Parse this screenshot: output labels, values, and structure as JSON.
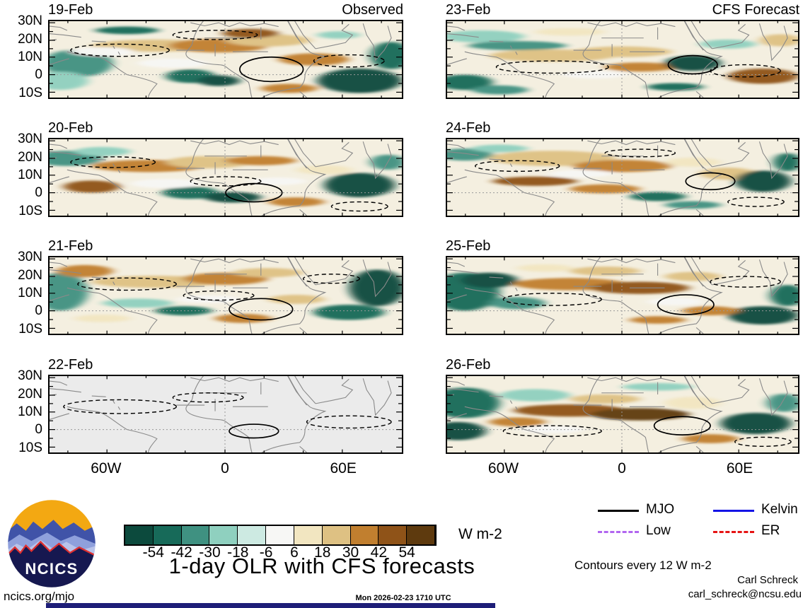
{
  "figure": {
    "title": "1-day OLR with CFS forecasts",
    "timestamp": "Mon 2026-02-23 1710 UTC",
    "site": "ncics.org/mjo",
    "credit_name": "Carl Schreck",
    "credit_email": "carl_schreck@ncsu.edu",
    "contour_note": "Contours every 12 W m-2"
  },
  "axes": {
    "lat_labels": [
      "30N",
      "20N",
      "10N",
      "0",
      "10S"
    ],
    "lon_labels": [
      "60W",
      "0",
      "60E"
    ]
  },
  "colorbar": {
    "unit": "W m-2",
    "tick_values": [
      "-54",
      "-42",
      "-30",
      "-18",
      "-6",
      "6",
      "18",
      "30",
      "42",
      "54"
    ],
    "colors": [
      "#0c4a3d",
      "#176a59",
      "#3f9181",
      "#8fd0bf",
      "#cdeae2",
      "#f7f7f5",
      "#f2e6c1",
      "#dec183",
      "#c17f2f",
      "#8f5318",
      "#5e3a0e"
    ]
  },
  "legend": {
    "items": [
      {
        "label": "MJO",
        "color": "#000000",
        "dash": "solid"
      },
      {
        "label": "Kelvin",
        "color": "#1414e6",
        "dash": "solid"
      },
      {
        "label": "Low",
        "color": "#b266f0",
        "dash": "dashed"
      },
      {
        "label": "ER",
        "color": "#e61414",
        "dash": "dashed"
      }
    ]
  },
  "logo": {
    "text": "NCICS"
  },
  "panels": [
    {
      "date": "19-Feb",
      "corner": "Observed",
      "column": 0,
      "row": 0,
      "style": "filled",
      "blobs": [
        [
          8,
          55,
          10,
          18,
          2
        ],
        [
          3,
          78,
          8,
          12,
          3
        ],
        [
          22,
          12,
          9,
          5,
          1
        ],
        [
          30,
          32,
          18,
          8,
          7
        ],
        [
          48,
          32,
          14,
          9,
          8
        ],
        [
          62,
          25,
          12,
          8,
          7
        ],
        [
          40,
          72,
          7,
          9,
          1
        ],
        [
          48,
          78,
          6,
          7,
          0
        ],
        [
          57,
          16,
          8,
          6,
          9
        ],
        [
          75,
          50,
          10,
          8,
          8
        ],
        [
          88,
          78,
          12,
          16,
          0
        ],
        [
          97,
          45,
          6,
          18,
          1
        ],
        [
          82,
          18,
          6,
          5,
          3
        ],
        [
          68,
          88,
          8,
          6,
          8
        ],
        [
          35,
          55,
          10,
          6,
          5
        ],
        [
          15,
          40,
          9,
          6,
          5
        ]
      ],
      "mjo": [
        63,
        63,
        9,
        16
      ],
      "dashed": [
        [
          20,
          38,
          14,
          8
        ],
        [
          47,
          18,
          12,
          6
        ],
        [
          85,
          52,
          10,
          8
        ]
      ]
    },
    {
      "date": "20-Feb",
      "corner": "",
      "column": 0,
      "row": 1,
      "style": "filled",
      "blobs": [
        [
          5,
          25,
          10,
          10,
          2
        ],
        [
          15,
          16,
          8,
          6,
          3
        ],
        [
          28,
          35,
          16,
          8,
          8
        ],
        [
          12,
          62,
          8,
          8,
          9
        ],
        [
          45,
          30,
          12,
          8,
          7
        ],
        [
          60,
          28,
          10,
          6,
          8
        ],
        [
          40,
          70,
          8,
          8,
          1
        ],
        [
          52,
          76,
          8,
          7,
          0
        ],
        [
          88,
          60,
          10,
          16,
          0
        ],
        [
          96,
          30,
          5,
          10,
          2
        ],
        [
          70,
          82,
          8,
          6,
          8
        ],
        [
          78,
          40,
          8,
          6,
          6
        ],
        [
          33,
          58,
          10,
          6,
          5
        ],
        [
          65,
          55,
          8,
          5,
          5
        ]
      ],
      "mjo": [
        58,
        70,
        8,
        12
      ],
      "dashed": [
        [
          18,
          30,
          12,
          7
        ],
        [
          50,
          55,
          10,
          6
        ],
        [
          88,
          88,
          8,
          6
        ]
      ]
    },
    {
      "date": "21-Feb",
      "corner": "",
      "column": 0,
      "row": 2,
      "style": "filled",
      "blobs": [
        [
          3,
          45,
          8,
          25,
          2
        ],
        [
          10,
          18,
          8,
          8,
          8
        ],
        [
          30,
          32,
          18,
          8,
          7
        ],
        [
          50,
          28,
          12,
          8,
          8
        ],
        [
          25,
          60,
          10,
          6,
          3
        ],
        [
          38,
          70,
          8,
          6,
          1
        ],
        [
          62,
          20,
          10,
          6,
          7
        ],
        [
          93,
          40,
          8,
          24,
          0
        ],
        [
          85,
          72,
          10,
          10,
          1
        ],
        [
          70,
          55,
          8,
          6,
          7
        ],
        [
          55,
          80,
          8,
          6,
          8
        ],
        [
          15,
          80,
          8,
          5,
          6
        ],
        [
          45,
          55,
          9,
          5,
          5
        ]
      ],
      "mjo": [
        60,
        68,
        9,
        14
      ],
      "dashed": [
        [
          22,
          35,
          14,
          8
        ],
        [
          48,
          50,
          10,
          6
        ],
        [
          80,
          28,
          8,
          6
        ]
      ]
    },
    {
      "date": "22-Feb",
      "corner": "",
      "column": 0,
      "row": 3,
      "style": "gray",
      "blobs": [],
      "mjo": [
        58,
        72,
        7,
        9
      ],
      "dashed": [
        [
          20,
          40,
          16,
          9
        ],
        [
          45,
          28,
          10,
          6
        ],
        [
          85,
          60,
          12,
          8
        ]
      ]
    },
    {
      "date": "23-Feb",
      "corner": "CFS Forecast",
      "column": 1,
      "row": 0,
      "style": "filled",
      "blobs": [
        [
          10,
          20,
          12,
          8,
          3
        ],
        [
          20,
          32,
          14,
          6,
          2
        ],
        [
          35,
          14,
          10,
          5,
          6
        ],
        [
          30,
          45,
          18,
          8,
          7
        ],
        [
          50,
          40,
          14,
          7,
          7
        ],
        [
          5,
          80,
          8,
          10,
          1
        ],
        [
          15,
          90,
          8,
          6,
          2
        ],
        [
          55,
          60,
          10,
          6,
          8
        ],
        [
          70,
          55,
          8,
          10,
          0
        ],
        [
          80,
          30,
          8,
          6,
          3
        ],
        [
          90,
          72,
          10,
          10,
          9
        ],
        [
          95,
          25,
          6,
          8,
          7
        ],
        [
          65,
          86,
          8,
          5,
          1
        ],
        [
          42,
          70,
          9,
          5,
          5
        ]
      ],
      "mjo": [
        70,
        57,
        7,
        12
      ],
      "dashed": [
        [
          30,
          60,
          16,
          8
        ],
        [
          85,
          65,
          10,
          8
        ]
      ]
    },
    {
      "date": "24-Feb",
      "corner": "",
      "column": 1,
      "row": 1,
      "style": "filled",
      "blobs": [
        [
          5,
          20,
          8,
          8,
          2
        ],
        [
          15,
          12,
          8,
          5,
          3
        ],
        [
          30,
          25,
          18,
          10,
          7
        ],
        [
          50,
          35,
          14,
          8,
          8
        ],
        [
          25,
          55,
          12,
          6,
          9
        ],
        [
          45,
          65,
          10,
          6,
          8
        ],
        [
          70,
          30,
          8,
          6,
          6
        ],
        [
          80,
          45,
          8,
          8,
          7
        ],
        [
          90,
          55,
          8,
          14,
          0
        ],
        [
          97,
          30,
          4,
          12,
          1
        ],
        [
          60,
          75,
          8,
          6,
          1
        ],
        [
          70,
          86,
          8,
          5,
          2
        ],
        [
          38,
          45,
          9,
          5,
          5
        ]
      ],
      "mjo": [
        75,
        55,
        7,
        11
      ],
      "dashed": [
        [
          20,
          35,
          12,
          7
        ],
        [
          55,
          18,
          10,
          5
        ],
        [
          88,
          82,
          8,
          6
        ]
      ]
    },
    {
      "date": "25-Feb",
      "corner": "",
      "column": 1,
      "row": 2,
      "style": "filled",
      "blobs": [
        [
          5,
          45,
          10,
          25,
          1
        ],
        [
          12,
          30,
          8,
          10,
          0
        ],
        [
          20,
          60,
          8,
          8,
          2
        ],
        [
          35,
          35,
          16,
          8,
          8
        ],
        [
          55,
          40,
          14,
          8,
          9
        ],
        [
          45,
          18,
          10,
          6,
          7
        ],
        [
          70,
          25,
          8,
          6,
          7
        ],
        [
          90,
          76,
          10,
          12,
          0
        ],
        [
          97,
          50,
          5,
          14,
          1
        ],
        [
          75,
          70,
          8,
          6,
          8
        ],
        [
          60,
          82,
          8,
          5,
          8
        ],
        [
          28,
          14,
          8,
          5,
          6
        ],
        [
          65,
          58,
          8,
          5,
          5
        ]
      ],
      "mjo": [
        68,
        62,
        8,
        13
      ],
      "dashed": [
        [
          30,
          55,
          14,
          8
        ],
        [
          85,
          32,
          10,
          7
        ]
      ]
    },
    {
      "date": "26-Feb",
      "corner": "",
      "column": 1,
      "row": 3,
      "style": "filled",
      "blobs": [
        [
          5,
          35,
          10,
          20,
          1
        ],
        [
          3,
          72,
          8,
          12,
          0
        ],
        [
          25,
          25,
          10,
          8,
          3
        ],
        [
          35,
          45,
          16,
          8,
          9
        ],
        [
          55,
          50,
          14,
          8,
          10
        ],
        [
          45,
          30,
          10,
          6,
          7
        ],
        [
          70,
          35,
          8,
          8,
          6
        ],
        [
          88,
          62,
          10,
          14,
          0
        ],
        [
          96,
          35,
          5,
          12,
          2
        ],
        [
          75,
          82,
          8,
          6,
          8
        ],
        [
          20,
          60,
          8,
          6,
          8
        ],
        [
          60,
          14,
          10,
          5,
          3
        ],
        [
          30,
          70,
          9,
          5,
          5
        ]
      ],
      "mjo": [
        67,
        65,
        8,
        12
      ],
      "dashed": [
        [
          30,
          72,
          14,
          7
        ],
        [
          90,
          86,
          8,
          6
        ]
      ]
    }
  ]
}
